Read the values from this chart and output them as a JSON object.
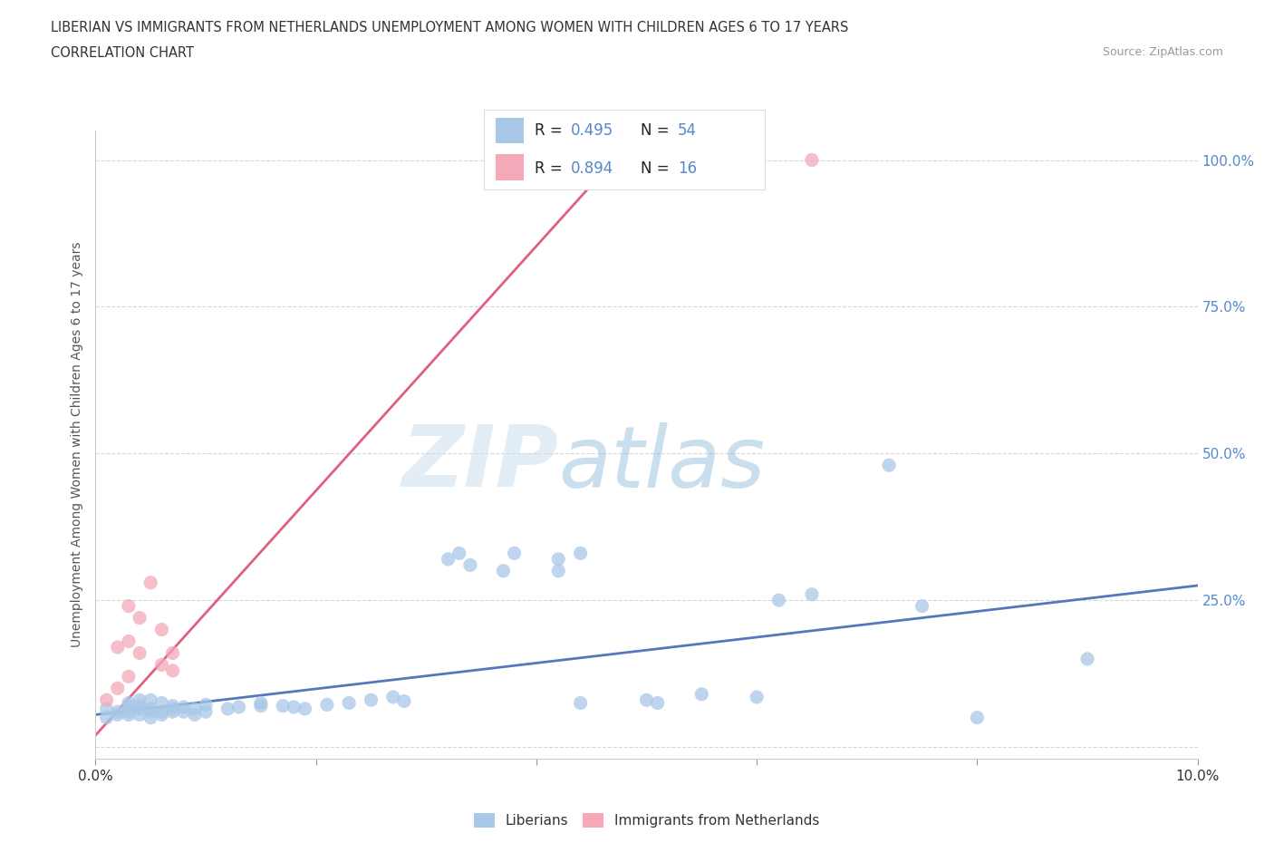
{
  "title_line1": "LIBERIAN VS IMMIGRANTS FROM NETHERLANDS UNEMPLOYMENT AMONG WOMEN WITH CHILDREN AGES 6 TO 17 YEARS",
  "title_line2": "CORRELATION CHART",
  "source_text": "Source: ZipAtlas.com",
  "ylabel": "Unemployment Among Women with Children Ages 6 to 17 years",
  "xlim": [
    0.0,
    0.1
  ],
  "ylim": [
    -0.02,
    1.05
  ],
  "x_ticks": [
    0.0,
    0.02,
    0.04,
    0.06,
    0.08,
    0.1
  ],
  "x_tick_labels": [
    "0.0%",
    "",
    "",
    "",
    "",
    "10.0%"
  ],
  "y_ticks": [
    0.0,
    0.25,
    0.5,
    0.75,
    1.0
  ],
  "y_tick_labels": [
    "",
    "25.0%",
    "50.0%",
    "75.0%",
    "100.0%"
  ],
  "liberian_color": "#a8c8e8",
  "netherlands_color": "#f4a8b8",
  "liberian_line_color": "#5577bb",
  "netherlands_line_color": "#e06080",
  "grid_color": "#cccccc",
  "watermark_zip": "ZIP",
  "watermark_atlas": "atlas",
  "liberian_scatter": [
    [
      0.001,
      0.05
    ],
    [
      0.001,
      0.065
    ],
    [
      0.002,
      0.055
    ],
    [
      0.002,
      0.06
    ],
    [
      0.003,
      0.055
    ],
    [
      0.003,
      0.06
    ],
    [
      0.003,
      0.07
    ],
    [
      0.003,
      0.075
    ],
    [
      0.004,
      0.055
    ],
    [
      0.004,
      0.065
    ],
    [
      0.004,
      0.07
    ],
    [
      0.004,
      0.08
    ],
    [
      0.005,
      0.05
    ],
    [
      0.005,
      0.06
    ],
    [
      0.005,
      0.065
    ],
    [
      0.005,
      0.08
    ],
    [
      0.006,
      0.055
    ],
    [
      0.006,
      0.06
    ],
    [
      0.006,
      0.075
    ],
    [
      0.007,
      0.06
    ],
    [
      0.007,
      0.065
    ],
    [
      0.007,
      0.07
    ],
    [
      0.008,
      0.06
    ],
    [
      0.008,
      0.068
    ],
    [
      0.009,
      0.055
    ],
    [
      0.009,
      0.065
    ],
    [
      0.01,
      0.06
    ],
    [
      0.01,
      0.072
    ],
    [
      0.012,
      0.065
    ],
    [
      0.013,
      0.068
    ],
    [
      0.015,
      0.07
    ],
    [
      0.015,
      0.075
    ],
    [
      0.017,
      0.07
    ],
    [
      0.018,
      0.068
    ],
    [
      0.019,
      0.065
    ],
    [
      0.021,
      0.072
    ],
    [
      0.023,
      0.075
    ],
    [
      0.025,
      0.08
    ],
    [
      0.027,
      0.085
    ],
    [
      0.028,
      0.078
    ],
    [
      0.032,
      0.32
    ],
    [
      0.033,
      0.33
    ],
    [
      0.034,
      0.31
    ],
    [
      0.037,
      0.3
    ],
    [
      0.038,
      0.33
    ],
    [
      0.042,
      0.3
    ],
    [
      0.042,
      0.32
    ],
    [
      0.044,
      0.075
    ],
    [
      0.044,
      0.33
    ],
    [
      0.05,
      0.08
    ],
    [
      0.051,
      0.075
    ],
    [
      0.055,
      0.09
    ],
    [
      0.06,
      0.085
    ],
    [
      0.062,
      0.25
    ],
    [
      0.065,
      0.26
    ],
    [
      0.072,
      0.48
    ],
    [
      0.08,
      0.05
    ],
    [
      0.075,
      0.24
    ],
    [
      0.09,
      0.15
    ]
  ],
  "netherlands_scatter": [
    [
      0.001,
      0.08
    ],
    [
      0.002,
      0.1
    ],
    [
      0.002,
      0.17
    ],
    [
      0.003,
      0.12
    ],
    [
      0.003,
      0.18
    ],
    [
      0.003,
      0.24
    ],
    [
      0.004,
      0.16
    ],
    [
      0.004,
      0.22
    ],
    [
      0.005,
      0.28
    ],
    [
      0.006,
      0.14
    ],
    [
      0.006,
      0.2
    ],
    [
      0.007,
      0.13
    ],
    [
      0.007,
      0.16
    ],
    [
      0.044,
      1.0
    ],
    [
      0.05,
      1.0
    ],
    [
      0.065,
      1.0
    ]
  ],
  "liberian_trendline": [
    [
      0.0,
      0.055
    ],
    [
      0.1,
      0.275
    ]
  ],
  "netherlands_trendline": [
    [
      0.0,
      0.02
    ],
    [
      0.048,
      1.02
    ]
  ]
}
